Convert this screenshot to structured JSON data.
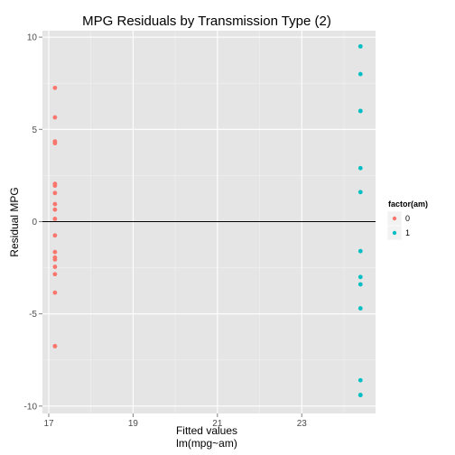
{
  "chart_data": {
    "type": "scatter",
    "title": "MPG Residuals by Transmission Type (2)",
    "xlabel": "Fitted values",
    "xlabel_sub": "lm(mpg~am)",
    "ylabel": "Residual MPG",
    "xlim": [
      16.85,
      24.75
    ],
    "ylim": [
      -10.4,
      10.35
    ],
    "xticks": [
      17,
      19,
      21,
      23
    ],
    "xtick_labels": [
      "17",
      "19",
      "21",
      "23"
    ],
    "yticks": [
      -10,
      -5,
      0,
      5,
      10
    ],
    "ytick_labels": [
      "-10",
      "-5",
      "0",
      "5",
      "10"
    ],
    "grid": true,
    "reference_line_y": 0,
    "legend": {
      "title": "factor(am)",
      "position": "right",
      "entries": [
        {
          "label": "0",
          "color": "#F8766D"
        },
        {
          "label": "1",
          "color": "#00BFC4"
        }
      ]
    },
    "series": [
      {
        "name": "0",
        "color": "#F8766D",
        "x": [
          17.147,
          17.147,
          17.147,
          17.147,
          17.147,
          17.147,
          17.147,
          17.147,
          17.147,
          17.147,
          17.147,
          17.147,
          17.147,
          17.147,
          17.147,
          17.147,
          17.147,
          17.147,
          17.147
        ],
        "y": [
          7.25,
          5.65,
          4.35,
          4.25,
          2.05,
          1.95,
          1.55,
          0.95,
          0.65,
          0.15,
          -0.75,
          -1.65,
          -1.95,
          -2.05,
          -2.45,
          -2.85,
          -3.85,
          -6.75,
          -6.75
        ]
      },
      {
        "name": "1",
        "color": "#00BFC4",
        "x": [
          24.392,
          24.392,
          24.392,
          24.392,
          24.392,
          24.392,
          24.392,
          24.392,
          24.392,
          24.392,
          24.392,
          24.392,
          24.392
        ],
        "y": [
          9.5,
          8.0,
          6.0,
          6.0,
          2.9,
          1.6,
          -1.6,
          -3.0,
          -3.4,
          -4.7,
          -8.6,
          -9.4,
          -9.4
        ]
      }
    ]
  }
}
